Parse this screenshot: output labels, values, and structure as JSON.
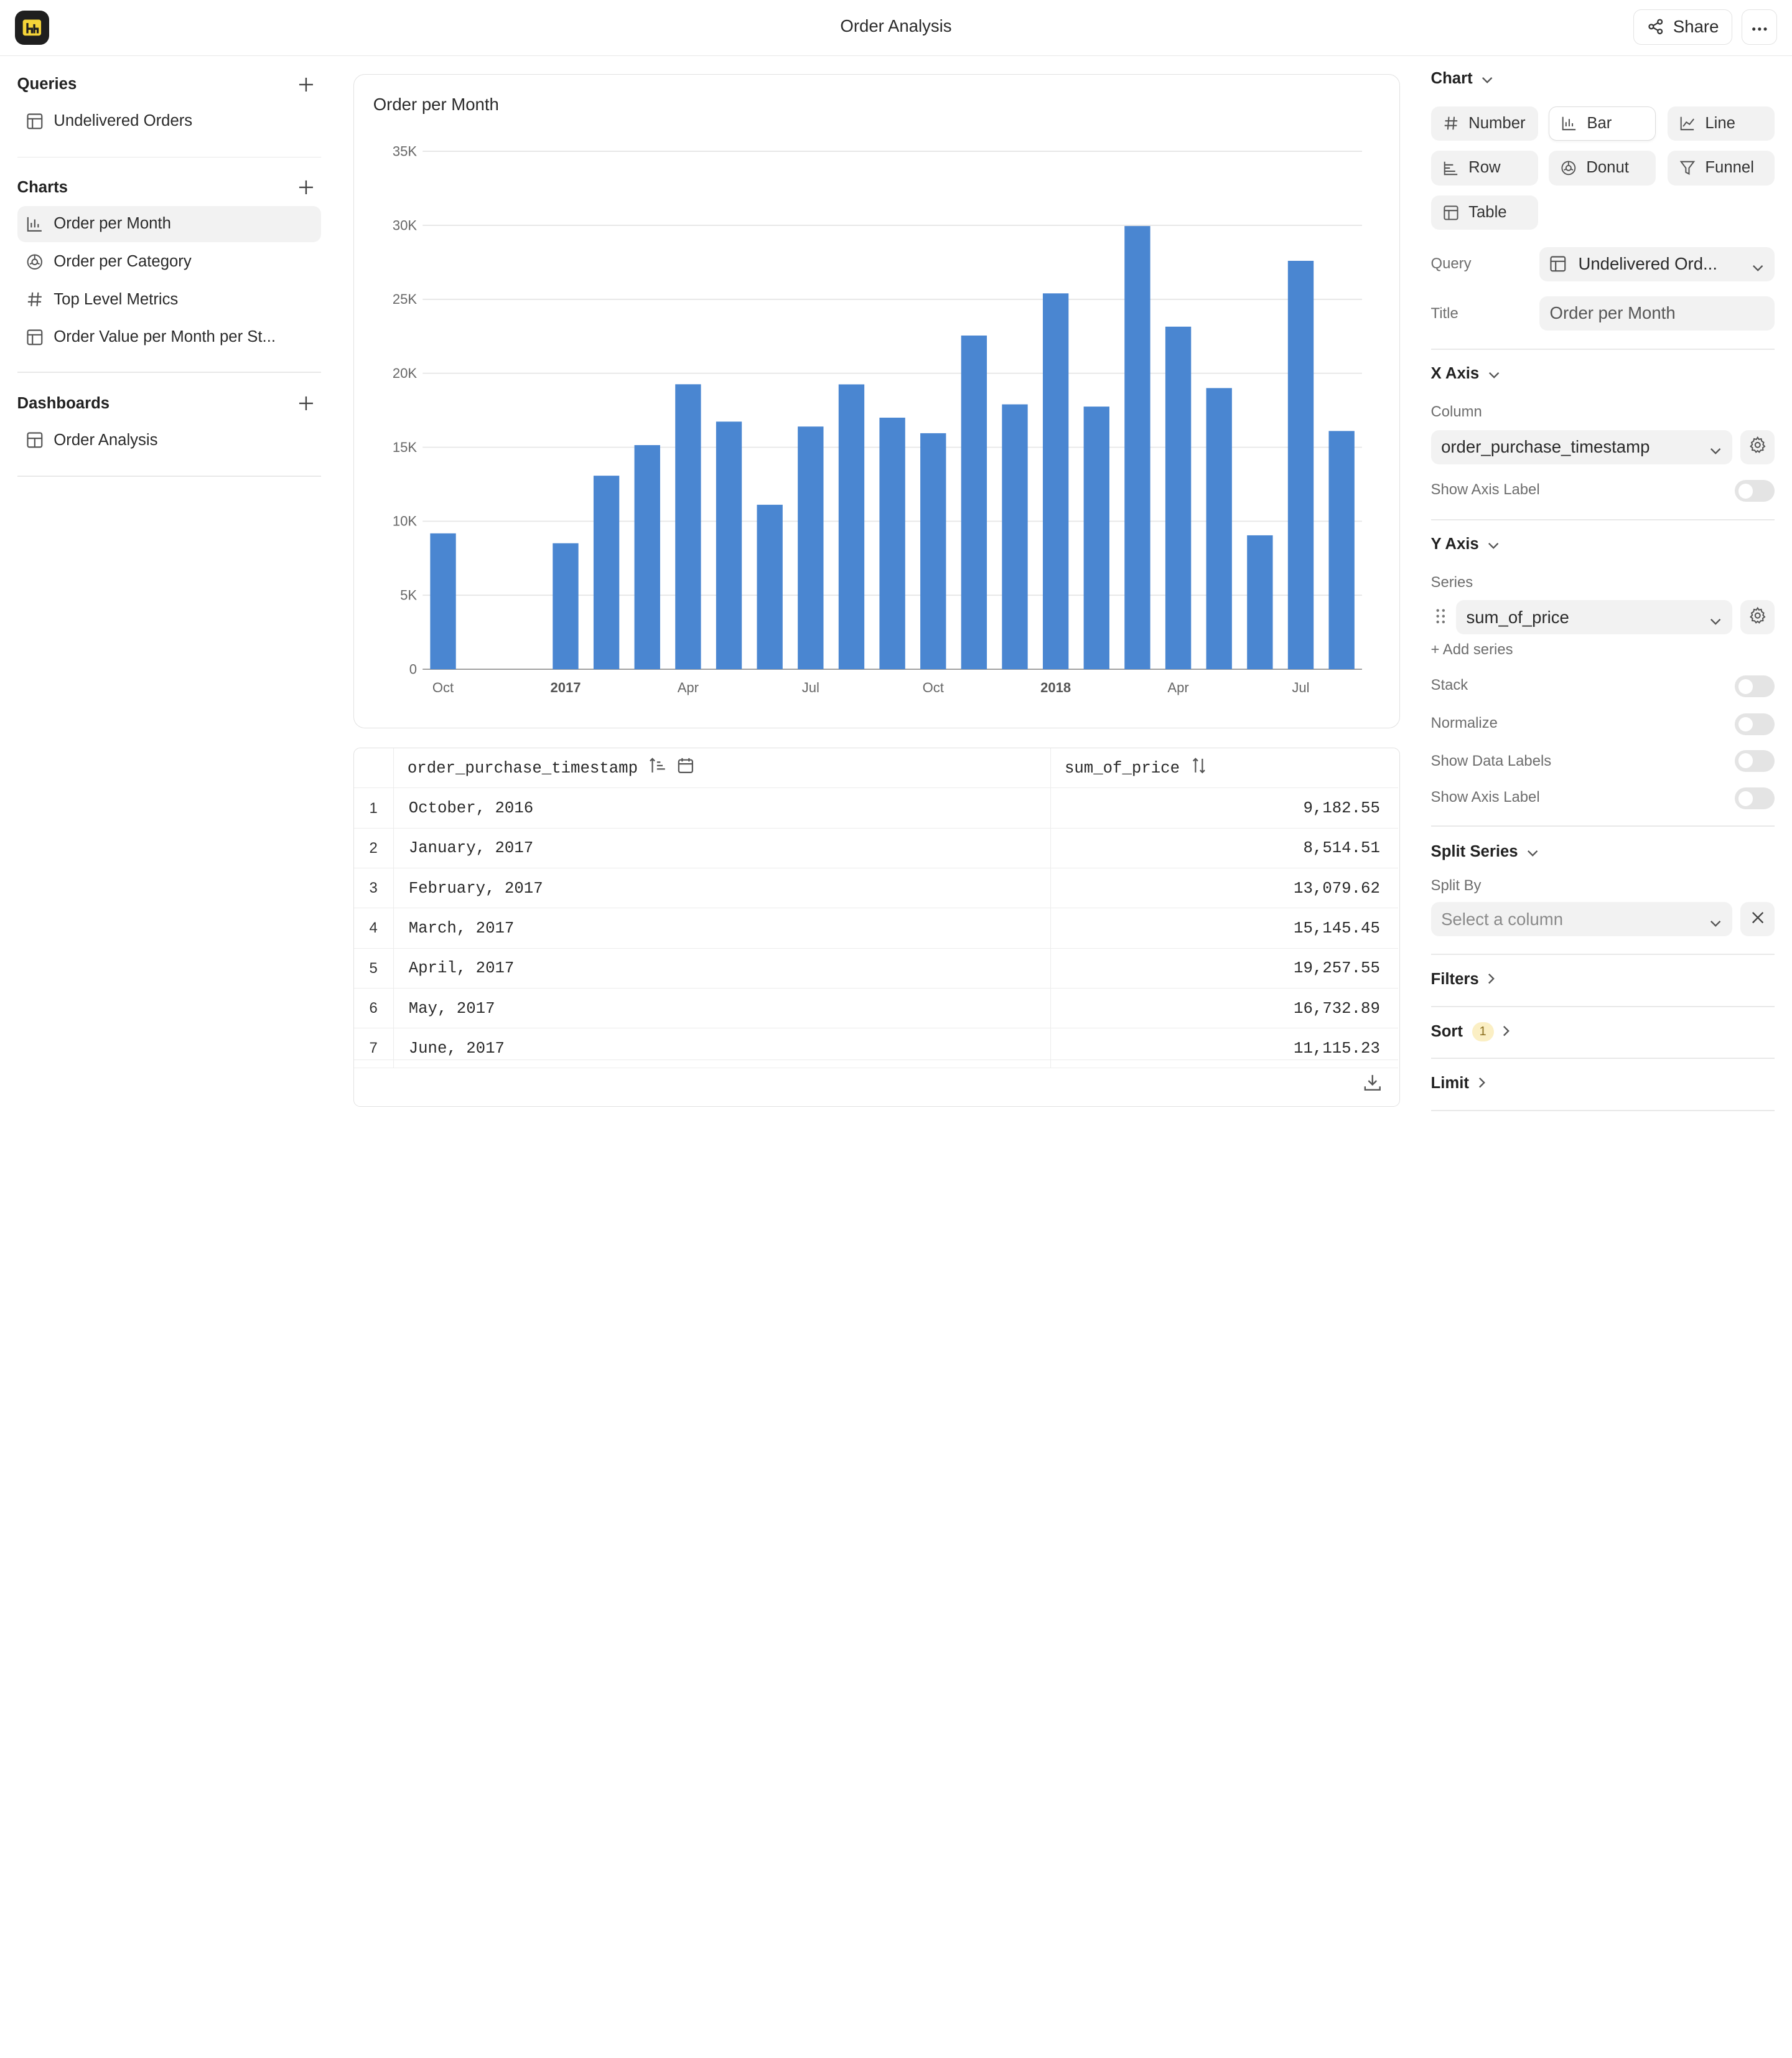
{
  "header": {
    "title": "Order Analysis",
    "share_label": "Share"
  },
  "sidebar": {
    "queries": {
      "heading": "Queries",
      "items": [
        {
          "label": "Undelivered Orders",
          "icon": "table-icon"
        }
      ]
    },
    "charts": {
      "heading": "Charts",
      "items": [
        {
          "label": "Order per Month",
          "icon": "bar-chart-icon",
          "active": true
        },
        {
          "label": "Order per Category",
          "icon": "donut-icon"
        },
        {
          "label": "Top Level Metrics",
          "icon": "hash-icon"
        },
        {
          "label": "Order Value per Month per St...",
          "icon": "table-icon"
        }
      ]
    },
    "dashboards": {
      "heading": "Dashboards",
      "items": [
        {
          "label": "Order Analysis",
          "icon": "dashboard-icon"
        }
      ]
    }
  },
  "chart_data": {
    "type": "bar",
    "title": "Order per Month",
    "xlabel": "",
    "ylabel": "",
    "ylim": [
      0,
      35000
    ],
    "y_ticks": [
      "0",
      "5K",
      "10K",
      "15K",
      "20K",
      "25K",
      "30K",
      "35K"
    ],
    "x_tick_labels": [
      {
        "label": "Oct",
        "bold": false
      },
      {
        "label": "2017",
        "bold": true
      },
      {
        "label": "Apr",
        "bold": false
      },
      {
        "label": "Jul",
        "bold": false
      },
      {
        "label": "Oct",
        "bold": false
      },
      {
        "label": "2018",
        "bold": true
      },
      {
        "label": "Apr",
        "bold": false
      },
      {
        "label": "Jul",
        "bold": false
      }
    ],
    "grid": true,
    "color": "#4a86d1",
    "categories": [
      "2016-10",
      "2016-11",
      "2016-12",
      "2017-01",
      "2017-02",
      "2017-03",
      "2017-04",
      "2017-05",
      "2017-06",
      "2017-07",
      "2017-08",
      "2017-09",
      "2017-10",
      "2017-11",
      "2017-12",
      "2018-01",
      "2018-02",
      "2018-03",
      "2018-04",
      "2018-05",
      "2018-06",
      "2018-07",
      "2018-08"
    ],
    "values": [
      9182.55,
      0,
      0,
      8514.51,
      13079.62,
      15145.45,
      19257.55,
      16732.89,
      11115.23,
      16400,
      19250,
      17000,
      15950,
      22550,
      17900,
      25400,
      17750,
      29950,
      23150,
      19000,
      9050,
      27600,
      16100
    ]
  },
  "table": {
    "columns": [
      {
        "name": "order_purchase_timestamp"
      },
      {
        "name": "sum_of_price"
      }
    ],
    "rows": [
      {
        "idx": "1",
        "ts": "October, 2016",
        "val": "9,182.55"
      },
      {
        "idx": "2",
        "ts": "January, 2017",
        "val": "8,514.51"
      },
      {
        "idx": "3",
        "ts": "February, 2017",
        "val": "13,079.62"
      },
      {
        "idx": "4",
        "ts": "March, 2017",
        "val": "15,145.45"
      },
      {
        "idx": "5",
        "ts": "April, 2017",
        "val": "19,257.55"
      },
      {
        "idx": "6",
        "ts": "May, 2017",
        "val": "16,732.89"
      },
      {
        "idx": "7",
        "ts": "June, 2017",
        "val": "11,115.23"
      }
    ]
  },
  "panel": {
    "chart_heading": "Chart",
    "chart_types": [
      {
        "label": "Number",
        "icon": "hash-icon"
      },
      {
        "label": "Bar",
        "icon": "bar-chart-icon",
        "selected": true
      },
      {
        "label": "Line",
        "icon": "line-chart-icon"
      },
      {
        "label": "Row",
        "icon": "row-chart-icon"
      },
      {
        "label": "Donut",
        "icon": "donut-icon"
      },
      {
        "label": "Funnel",
        "icon": "funnel-icon"
      },
      {
        "label": "Table",
        "icon": "table-icon"
      }
    ],
    "query_label": "Query",
    "query_value": "Undelivered Ord...",
    "title_label": "Title",
    "title_value": "Order per Month",
    "x_axis": {
      "heading": "X Axis",
      "column_label": "Column",
      "column_value": "order_purchase_timestamp",
      "show_axis_label": "Show Axis Label",
      "show_axis_label_on": false
    },
    "y_axis": {
      "heading": "Y Axis",
      "series_label": "Series",
      "series_value": "sum_of_price",
      "add_series": "+ Add series",
      "stack": "Stack",
      "normalize": "Normalize",
      "show_data_labels": "Show Data Labels",
      "show_axis_label": "Show Axis Label"
    },
    "split_series": {
      "heading": "Split Series",
      "split_by_label": "Split By",
      "placeholder": "Select a column"
    },
    "filters": "Filters",
    "sort": "Sort",
    "sort_count": "1",
    "limit": "Limit"
  }
}
